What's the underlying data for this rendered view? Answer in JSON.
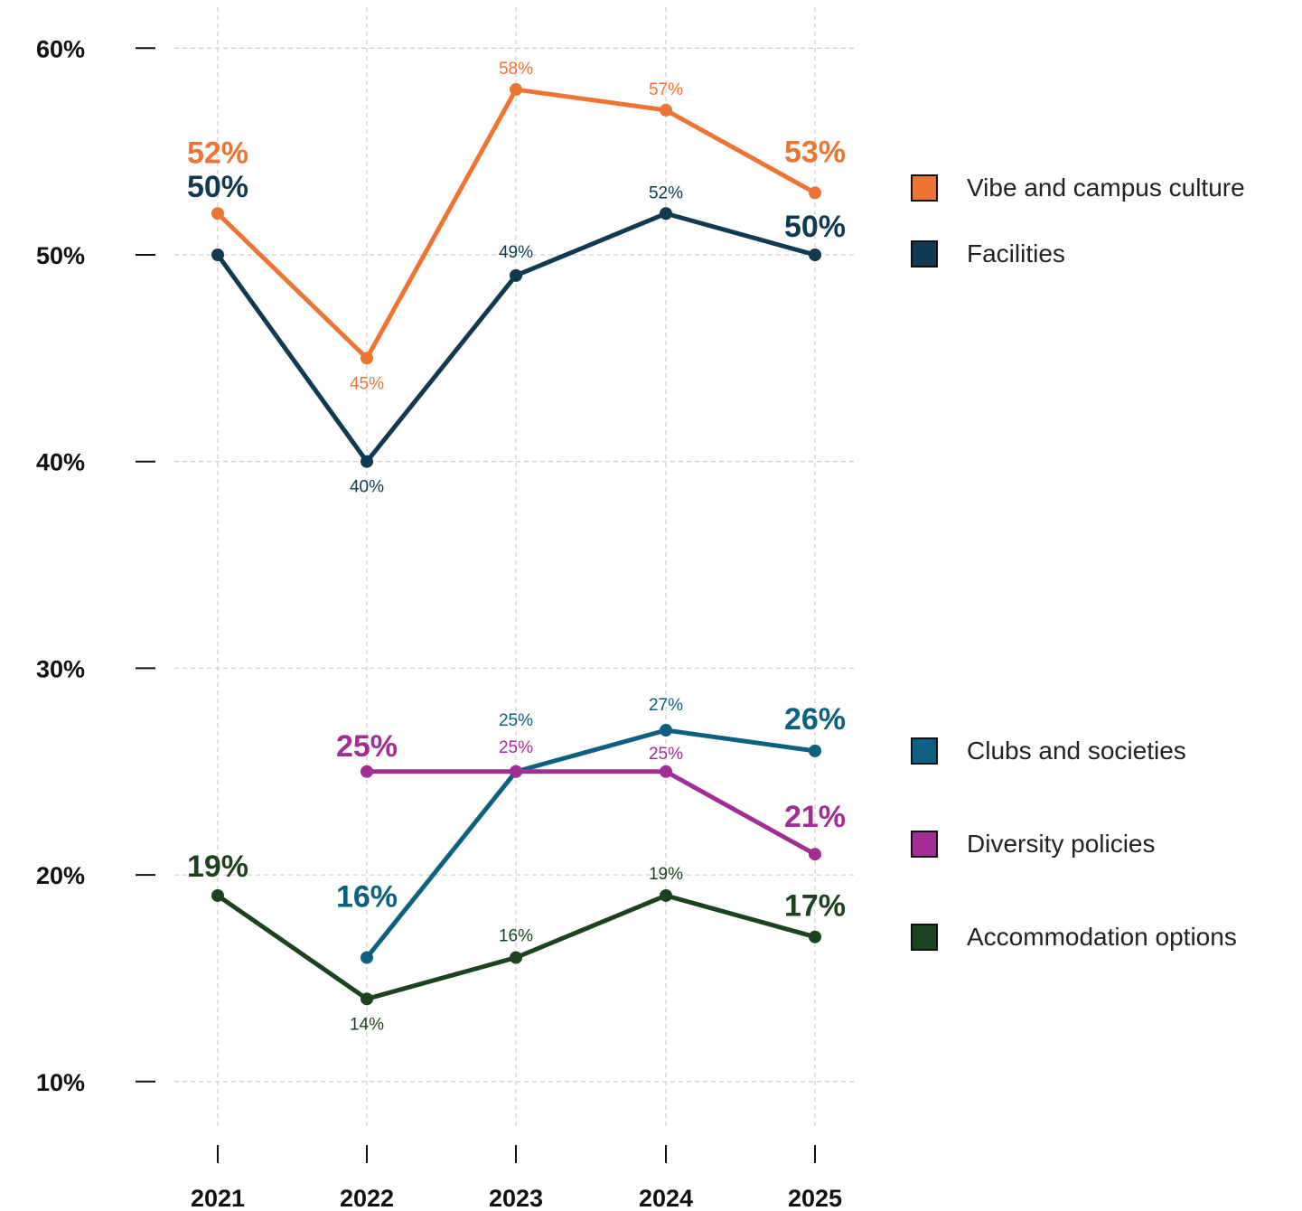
{
  "chart_data": {
    "type": "line",
    "title": "",
    "xlabel": "",
    "ylabel": "",
    "categories": [
      "2021",
      "2022",
      "2023",
      "2024",
      "2025"
    ],
    "y_ticks": [
      "10%",
      "20%",
      "30%",
      "40%",
      "50%",
      "60%"
    ],
    "ylim": [
      7,
      61
    ],
    "grid": true,
    "legend_position": "right",
    "series": [
      {
        "name": "Vibe and campus culture",
        "color": "#EE7434",
        "values": [
          52,
          45,
          58,
          57,
          53
        ],
        "labels": [
          "52%",
          "45%",
          "58%",
          "57%",
          "53%"
        ]
      },
      {
        "name": "Facilities",
        "color": "#0F3A52",
        "values": [
          50,
          40,
          49,
          52,
          50
        ],
        "labels": [
          "50%",
          "40%",
          "49%",
          "52%",
          "50%"
        ]
      },
      {
        "name": "Clubs and societies",
        "color": "#0E6082",
        "values": [
          null,
          16,
          25,
          27,
          26
        ],
        "labels": [
          null,
          "16%",
          "25%",
          "27%",
          "26%"
        ]
      },
      {
        "name": "Diversity policies",
        "color": "#A22D94",
        "values": [
          null,
          25,
          25,
          25,
          21
        ],
        "labels": [
          null,
          "25%",
          "25%",
          "25%",
          "21%"
        ]
      },
      {
        "name": "Accommodation options",
        "color": "#1C4320",
        "values": [
          19,
          14,
          16,
          19,
          17
        ],
        "labels": [
          "19%",
          "14%",
          "16%",
          "19%",
          "17%"
        ]
      }
    ]
  }
}
